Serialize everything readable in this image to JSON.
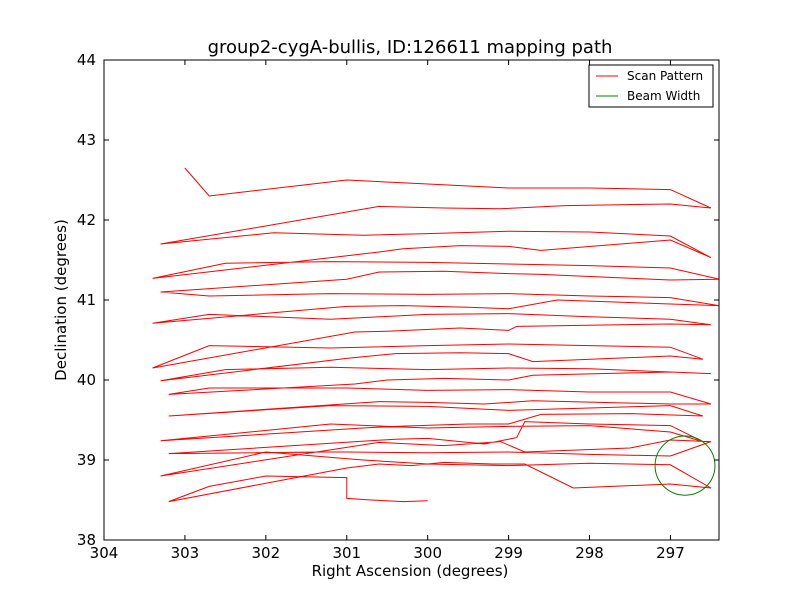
{
  "chart_data": {
    "type": "line",
    "title": "group2-cygA-bullis, ID:126611 mapping path",
    "xlabel": "Right Ascension (degrees)",
    "ylabel": "Declination (degrees)",
    "xlim": [
      304.0,
      296.4
    ],
    "ylim": [
      38.0,
      44.0
    ],
    "x_ticks": [
      304,
      303,
      302,
      301,
      300,
      299,
      298,
      297
    ],
    "y_ticks": [
      38,
      39,
      40,
      41,
      42,
      43,
      44
    ],
    "x_tick_labels": [
      "304",
      "303",
      "302",
      "301",
      "300",
      "299",
      "298",
      "297"
    ],
    "y_tick_labels": [
      "38",
      "39",
      "40",
      "41",
      "42",
      "43",
      "44"
    ],
    "grid": false,
    "legend_placement": "top-right",
    "colors": {
      "scan": "#ff0000",
      "beam": "#008000"
    },
    "series": [
      {
        "name": "Scan Pattern",
        "kind": "line",
        "x": [
          300.0,
          300.3,
          300.7,
          301.0,
          301.0,
          302.0,
          302.7,
          303.2,
          301.0,
          300.6,
          300.2,
          299.8,
          299.2,
          298.8,
          298.2,
          297.0,
          296.5,
          297.0,
          298.0,
          299.0,
          300.0,
          300.8,
          302.0,
          303.3,
          300.6,
          299.8,
          299.1,
          298.8,
          297.5,
          297.0,
          296.5,
          297.0,
          298.0,
          299.0,
          300.0,
          301.0,
          301.3,
          303.2,
          300.4,
          300.0,
          299.3,
          298.9,
          298.8,
          298.0,
          297.0,
          296.6,
          297.0,
          298.0,
          299.0,
          300.0,
          301.2,
          303.3,
          300.8,
          300.4,
          299.5,
          299.0,
          298.6,
          297.5,
          296.6,
          297.0,
          298.0,
          299.0,
          300.0,
          301.2,
          303.2,
          300.6,
          300.0,
          299.3,
          298.7,
          297.0,
          296.5,
          297.0,
          298.0,
          299.0,
          300.0,
          301.0,
          302.7,
          303.2,
          300.9,
          300.5,
          299.8,
          299.0,
          298.7,
          297.0,
          296.5,
          297.0,
          298.0,
          299.0,
          300.0,
          301.2,
          302.5,
          303.3,
          301.0,
          300.4,
          299.6,
          299.0,
          298.7,
          297.0,
          296.6,
          297.0,
          298.0,
          299.0,
          300.0,
          301.2,
          302.7,
          303.4,
          300.9,
          300.5,
          299.6,
          299.0,
          298.9,
          297.0,
          296.5,
          297.0,
          298.0,
          299.0,
          300.0,
          301.2,
          302.7,
          303.4,
          301.0,
          300.3,
          299.5,
          299.0,
          298.4,
          297.0,
          296.4,
          297.0,
          298.0,
          299.0,
          300.0,
          301.2,
          302.7,
          303.3,
          301.0,
          300.6,
          299.8,
          299.0,
          298.6,
          297.0,
          296.4,
          297.0,
          298.0,
          299.0,
          300.0,
          301.2,
          302.5,
          303.4,
          300.6,
          300.3,
          299.6,
          299.0,
          298.6,
          297.0,
          296.5,
          297.0,
          298.0,
          299.0,
          300.0,
          300.8,
          301.9,
          303.3,
          301.0,
          300.6,
          299.8,
          299.1,
          298.3,
          297.0,
          296.5,
          297.0,
          298.0,
          299.0,
          300.0,
          301.0,
          302.7,
          303.0
        ],
        "y": [
          38.49,
          38.48,
          38.5,
          38.52,
          38.78,
          38.8,
          38.67,
          38.48,
          38.9,
          38.95,
          38.93,
          38.97,
          38.95,
          38.95,
          38.65,
          38.7,
          38.65,
          38.94,
          38.96,
          38.93,
          38.95,
          39.0,
          39.1,
          38.8,
          39.22,
          39.18,
          39.23,
          39.1,
          39.15,
          39.25,
          39.23,
          39.05,
          39.07,
          39.1,
          39.09,
          39.1,
          39.1,
          39.08,
          39.26,
          39.27,
          39.2,
          39.28,
          39.48,
          39.45,
          39.43,
          39.23,
          39.35,
          39.43,
          39.42,
          39.4,
          39.45,
          39.24,
          39.4,
          39.42,
          39.45,
          39.45,
          39.57,
          39.58,
          39.55,
          39.68,
          39.65,
          39.62,
          39.67,
          39.68,
          39.55,
          39.73,
          39.72,
          39.7,
          39.74,
          39.7,
          39.7,
          39.85,
          39.85,
          39.88,
          39.87,
          39.9,
          39.9,
          39.82,
          39.95,
          40.0,
          40.02,
          40.0,
          40.06,
          40.1,
          40.08,
          40.1,
          40.14,
          40.15,
          40.13,
          40.16,
          40.13,
          39.99,
          40.27,
          40.33,
          40.34,
          40.33,
          40.23,
          40.3,
          40.26,
          40.41,
          40.43,
          40.45,
          40.43,
          40.4,
          40.43,
          40.15,
          40.6,
          40.61,
          40.65,
          40.62,
          40.67,
          40.7,
          40.69,
          40.76,
          40.79,
          40.83,
          40.82,
          40.76,
          40.82,
          40.71,
          40.92,
          40.93,
          40.91,
          40.89,
          41.0,
          40.95,
          40.93,
          41.03,
          41.05,
          41.08,
          41.07,
          41.08,
          41.05,
          41.1,
          41.26,
          41.35,
          41.36,
          41.33,
          41.32,
          41.25,
          41.26,
          41.4,
          41.43,
          41.45,
          41.47,
          41.48,
          41.46,
          41.27,
          41.6,
          41.64,
          41.68,
          41.67,
          41.62,
          41.75,
          41.53,
          41.8,
          41.85,
          41.86,
          41.83,
          41.81,
          41.84,
          41.7,
          42.1,
          42.17,
          42.15,
          42.14,
          42.18,
          42.2,
          42.15,
          42.38,
          42.4,
          42.4,
          42.45,
          42.5,
          42.3,
          42.65
        ]
      },
      {
        "name": "Beam Width",
        "kind": "circle",
        "center": [
          296.82,
          38.93
        ],
        "radius_deg": 0.37
      }
    ]
  }
}
